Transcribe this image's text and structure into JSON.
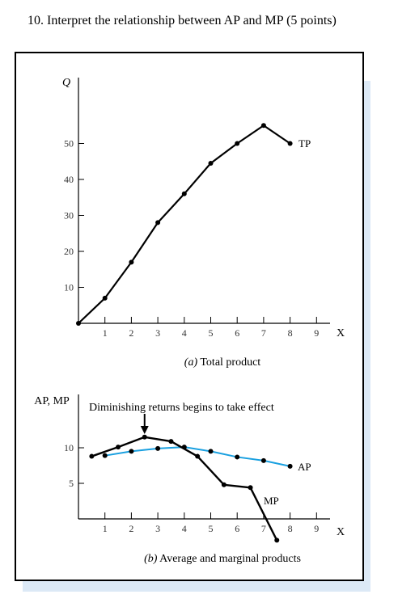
{
  "question": {
    "text": "10. Interpret the relationship between AP and MP (5 points)"
  },
  "colors": {
    "tp": "#000000",
    "mp": "#000000",
    "ap": "#1aa0e0",
    "frame_shadow": "#dce9f6"
  },
  "chart_data": [
    {
      "type": "line",
      "caption_letter": "(a)",
      "caption_text": "Total product",
      "ylabel": "Q",
      "xlabel": "X",
      "xlim": [
        0,
        9.7
      ],
      "ylim": [
        0,
        65
      ],
      "x_ticks": [
        "1",
        "2",
        "3",
        "4",
        "5",
        "6",
        "7",
        "8",
        "9"
      ],
      "y_ticks": [
        "10",
        "20",
        "30",
        "40",
        "50"
      ],
      "series": [
        {
          "name": "TP",
          "x": [
            0,
            1,
            2,
            3,
            4,
            5,
            6,
            7,
            8
          ],
          "y": [
            0,
            7,
            17,
            28,
            36,
            44.5,
            50,
            55,
            50
          ]
        }
      ]
    },
    {
      "type": "line",
      "caption_letter": "(b)",
      "caption_text": "Average and marginal products",
      "ylabel": "AP, MP",
      "xlabel": "X",
      "xlim": [
        0,
        9.7
      ],
      "ylim": [
        0,
        14
      ],
      "x_ticks": [
        "1",
        "2",
        "3",
        "4",
        "5",
        "6",
        "7",
        "8",
        "9"
      ],
      "y_ticks": [
        "5",
        "10"
      ],
      "annotation": {
        "text": "Diminishing returns begins to take effect",
        "x": 2.5
      },
      "series": [
        {
          "name": "MP",
          "x": [
            0.5,
            1.5,
            2.5,
            3.5,
            4.5,
            5.5,
            6.5,
            7.5
          ],
          "y": [
            8.8,
            10.1,
            11.5,
            10.9,
            8.8,
            4.8,
            4.4,
            -3.0
          ]
        },
        {
          "name": "AP",
          "x": [
            1,
            2,
            3,
            4,
            5,
            6,
            7,
            8
          ],
          "y": [
            8.9,
            9.5,
            9.9,
            10.1,
            9.5,
            8.7,
            8.2,
            7.4
          ]
        }
      ]
    }
  ]
}
